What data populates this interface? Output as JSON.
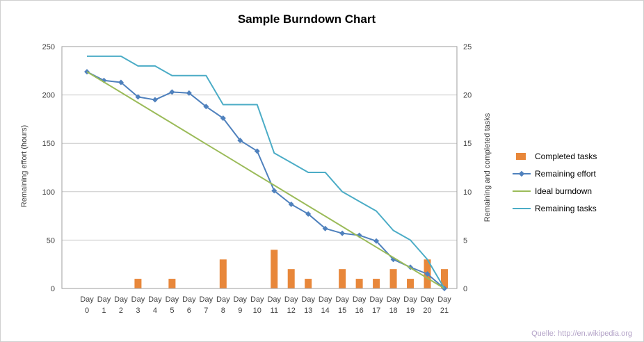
{
  "chart": {
    "title": "Sample Burndown Chart",
    "left_axis_title": "Remaining effort (hours)",
    "right_axis_title": "Remaining and completed tasks",
    "source_note": "Quelle: http://en.wikipedia.org"
  },
  "legend": {
    "position": "right",
    "items": [
      {
        "label": "Completed tasks",
        "type": "bar",
        "color": "#E8873A"
      },
      {
        "label": "Remaining effort",
        "type": "line-marker",
        "color": "#4F81BD"
      },
      {
        "label": "Ideal burndown",
        "type": "line",
        "color": "#9BBB59"
      },
      {
        "label": "Remaining tasks",
        "type": "line",
        "color": "#4BACC6"
      }
    ]
  },
  "chart_data": {
    "type": "combo-bar-line",
    "title": "Sample Burndown Chart",
    "x_label_prefix": "Day",
    "categories": [
      0,
      1,
      2,
      3,
      4,
      5,
      6,
      7,
      8,
      9,
      10,
      11,
      12,
      13,
      14,
      15,
      16,
      17,
      18,
      19,
      20,
      21
    ],
    "left_axis": {
      "title": "Remaining effort (hours)",
      "min": 0,
      "max": 250,
      "step": 50
    },
    "right_axis": {
      "title": "Remaining and completed tasks",
      "min": 0,
      "max": 25,
      "step": 5
    },
    "grid": true,
    "legend_position": "right",
    "series": [
      {
        "name": "Completed tasks",
        "type": "bar",
        "axis": "right",
        "color": "#E8873A",
        "values": [
          0,
          0,
          0,
          1,
          0,
          1,
          0,
          0,
          3,
          0,
          0,
          4,
          2,
          1,
          0,
          2,
          1,
          1,
          2,
          1,
          3,
          2
        ]
      },
      {
        "name": "Remaining effort",
        "type": "line",
        "marker": "diamond",
        "axis": "left",
        "color": "#4F81BD",
        "values": [
          224,
          215,
          213,
          198,
          195,
          203,
          202,
          188,
          176,
          153,
          142,
          101,
          87,
          77,
          62,
          57,
          55,
          49,
          30,
          22,
          15,
          0
        ]
      },
      {
        "name": "Ideal burndown",
        "type": "line",
        "axis": "left",
        "color": "#9BBB59",
        "values": [
          224,
          213.3,
          202.7,
          192,
          181.3,
          170.7,
          160,
          149.3,
          138.7,
          128,
          117.3,
          106.7,
          96,
          85.3,
          74.7,
          64,
          53.3,
          42.7,
          32,
          21.3,
          10.7,
          0
        ]
      },
      {
        "name": "Remaining tasks",
        "type": "line",
        "axis": "right",
        "color": "#4BACC6",
        "values": [
          24,
          24,
          24,
          23,
          23,
          22,
          22,
          22,
          19,
          19,
          19,
          14,
          13,
          12,
          12,
          10,
          9,
          8,
          6,
          5,
          3,
          0
        ]
      }
    ]
  }
}
